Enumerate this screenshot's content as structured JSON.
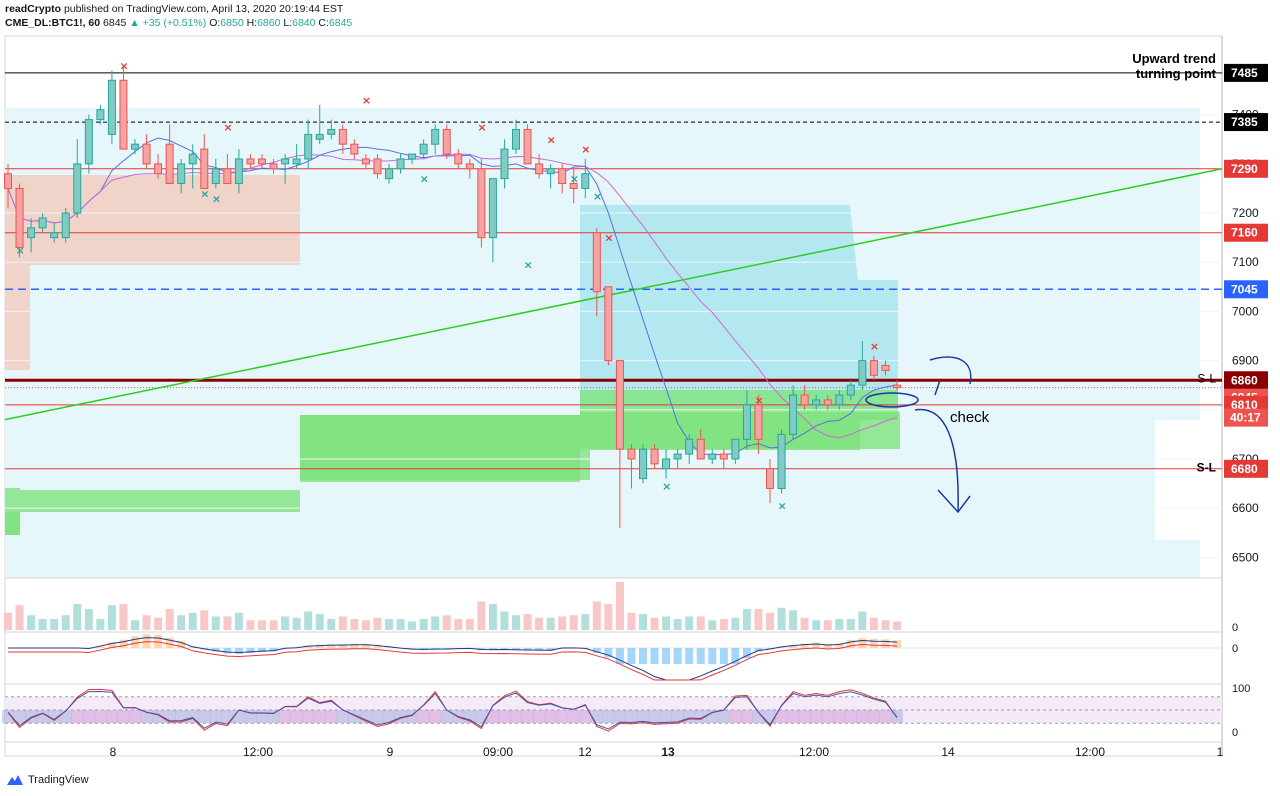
{
  "header": {
    "author": "readCrypto",
    "published": "published on TradingView.com, April 13, 2020 20:19:44 EST",
    "symbol": "CME_DL:BTC1!, 60",
    "last": "6845",
    "change": "+35 (+0.51%)",
    "o_label": "O:",
    "o": "6850",
    "h_label": "H:",
    "h": "6860",
    "l_label": "L:",
    "l": "6840",
    "c_label": "C:",
    "c": "6845"
  },
  "footer": {
    "brand": "TradingView"
  },
  "colors": {
    "up": "#26a69a",
    "down": "#ef5350",
    "up_fill": "#80cbc4",
    "down_fill": "#f5a3a3",
    "red_line": "#e53935",
    "green_trend": "#2ecc1f",
    "blue_dash": "#2962ff",
    "dark_red": "#8b0000",
    "annotation": "#1a3a9c",
    "cloud_green": "#7ee27e",
    "cloud_red": "#f3c8b8",
    "cloud_blue": "#a6e3ef",
    "cloud_pale": "#e6f7fb"
  },
  "chart_data": {
    "type": "candlestick",
    "ylim": [
      6460,
      7560
    ],
    "y_ticks": [
      6500,
      6600,
      6700,
      6800,
      6900,
      7000,
      7100,
      7200,
      7300,
      7400
    ],
    "x_ticks": [
      "8",
      "12:00",
      "9",
      "09:00",
      "12",
      "13",
      "12:00",
      "14",
      "12:00",
      "1"
    ],
    "candles": [
      [
        7280,
        7300,
        7210,
        7250
      ],
      [
        7250,
        7260,
        7110,
        7130
      ],
      [
        7150,
        7190,
        7120,
        7170
      ],
      [
        7170,
        7200,
        7160,
        7190
      ],
      [
        7150,
        7180,
        7140,
        7160
      ],
      [
        7150,
        7210,
        7140,
        7200
      ],
      [
        7200,
        7350,
        7190,
        7300
      ],
      [
        7300,
        7400,
        7280,
        7390
      ],
      [
        7390,
        7420,
        7380,
        7410
      ],
      [
        7360,
        7490,
        7340,
        7470
      ],
      [
        7470,
        7500,
        7340,
        7330
      ],
      [
        7330,
        7350,
        7320,
        7340
      ],
      [
        7340,
        7360,
        7290,
        7300
      ],
      [
        7300,
        7320,
        7270,
        7280
      ],
      [
        7340,
        7380,
        7260,
        7260
      ],
      [
        7260,
        7310,
        7240,
        7300
      ],
      [
        7300,
        7340,
        7250,
        7320
      ],
      [
        7330,
        7360,
        7250,
        7250
      ],
      [
        7260,
        7310,
        7250,
        7290
      ],
      [
        7290,
        7320,
        7260,
        7260
      ],
      [
        7260,
        7330,
        7240,
        7310
      ],
      [
        7310,
        7320,
        7290,
        7300
      ],
      [
        7310,
        7320,
        7290,
        7300
      ],
      [
        7300,
        7310,
        7280,
        7290
      ],
      [
        7300,
        7320,
        7260,
        7310
      ],
      [
        7300,
        7340,
        7290,
        7310
      ],
      [
        7310,
        7390,
        7290,
        7360
      ],
      [
        7350,
        7420,
        7340,
        7360
      ],
      [
        7360,
        7390,
        7350,
        7370
      ],
      [
        7370,
        7380,
        7320,
        7340
      ],
      [
        7340,
        7350,
        7310,
        7320
      ],
      [
        7310,
        7320,
        7290,
        7300
      ],
      [
        7310,
        7320,
        7270,
        7280
      ],
      [
        7270,
        7300,
        7260,
        7290
      ],
      [
        7290,
        7320,
        7280,
        7310
      ],
      [
        7310,
        7320,
        7300,
        7320
      ],
      [
        7320,
        7350,
        7310,
        7340
      ],
      [
        7340,
        7380,
        7320,
        7370
      ],
      [
        7370,
        7380,
        7310,
        7320
      ],
      [
        7320,
        7330,
        7290,
        7300
      ],
      [
        7300,
        7310,
        7270,
        7290
      ],
      [
        7290,
        7310,
        7130,
        7150
      ],
      [
        7150,
        7260,
        7100,
        7270
      ],
      [
        7270,
        7350,
        7250,
        7330
      ],
      [
        7330,
        7390,
        7320,
        7370
      ],
      [
        7370,
        7380,
        7300,
        7300
      ],
      [
        7300,
        7320,
        7270,
        7280
      ],
      [
        7280,
        7300,
        7250,
        7290
      ],
      [
        7290,
        7300,
        7240,
        7260
      ],
      [
        7260,
        7290,
        7220,
        7250
      ],
      [
        7250,
        7310,
        7230,
        7280
      ],
      [
        7160,
        7170,
        6990,
        7040
      ],
      [
        7050,
        7050,
        6890,
        6900
      ],
      [
        6900,
        6900,
        6560,
        6720
      ],
      [
        6720,
        6730,
        6640,
        6700
      ],
      [
        6660,
        6730,
        6650,
        6720
      ],
      [
        6720,
        6730,
        6680,
        6690
      ],
      [
        6680,
        6720,
        6660,
        6700
      ],
      [
        6700,
        6720,
        6680,
        6710
      ],
      [
        6710,
        6750,
        6690,
        6740
      ],
      [
        6740,
        6760,
        6700,
        6700
      ],
      [
        6700,
        6720,
        6690,
        6710
      ],
      [
        6710,
        6720,
        6680,
        6700
      ],
      [
        6700,
        6740,
        6690,
        6740
      ],
      [
        6740,
        6840,
        6720,
        6810
      ],
      [
        6810,
        6830,
        6710,
        6740
      ],
      [
        6680,
        6700,
        6610,
        6640
      ],
      [
        6640,
        6760,
        6630,
        6750
      ],
      [
        6750,
        6850,
        6740,
        6830
      ],
      [
        6830,
        6850,
        6800,
        6810
      ],
      [
        6810,
        6830,
        6800,
        6820
      ],
      [
        6820,
        6830,
        6800,
        6810
      ],
      [
        6810,
        6840,
        6800,
        6830
      ],
      [
        6830,
        6860,
        6820,
        6850
      ],
      [
        6850,
        6940,
        6840,
        6900
      ],
      [
        6900,
        6910,
        6860,
        6870
      ],
      [
        6890,
        6900,
        6870,
        6880
      ],
      [
        6850,
        6860,
        6840,
        6845
      ]
    ],
    "horizontal_levels": [
      {
        "label": "7485",
        "value": 7485,
        "style": "solid-black"
      },
      {
        "label": "7385",
        "value": 7385,
        "style": "dashed-black"
      },
      {
        "label": "7290",
        "value": 7290,
        "style": "solid-red"
      },
      {
        "label": "7160",
        "value": 7160,
        "style": "solid-red"
      },
      {
        "label": "7045",
        "value": 7045,
        "style": "dashed-blue"
      },
      {
        "label": "6860",
        "value": 6860,
        "style": "thick-darkred"
      },
      {
        "label": "6845",
        "value": 6845,
        "style": "last-price"
      },
      {
        "label": "6810",
        "value": 6810,
        "style": "solid-red"
      },
      {
        "label": "6680",
        "value": 6680,
        "style": "solid-red"
      }
    ],
    "countdown": "40:17",
    "annotations": {
      "trend_top": "Upward trend",
      "trend_bottom": "turning point",
      "sl_upper": "S-L",
      "sl_lower": "S-L",
      "check": "check"
    },
    "volume_axis": [
      "0"
    ],
    "macd_axis": [
      "0"
    ],
    "stoch_axis": [
      "100",
      "0"
    ]
  }
}
